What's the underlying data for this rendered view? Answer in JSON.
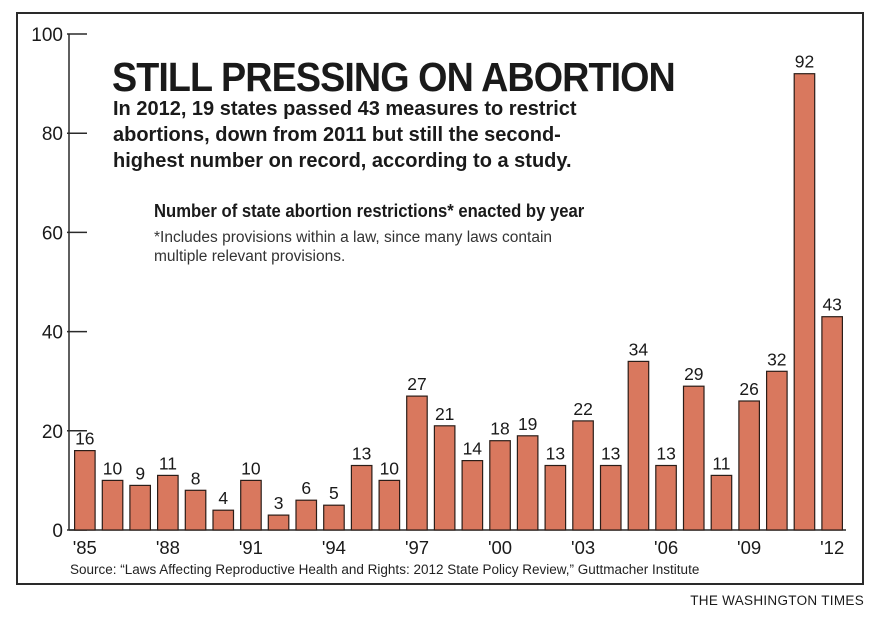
{
  "headline": "STILL PRESSING ON ABORTION",
  "dek_lines": [
    "In 2012, 19 states passed 43 measures to restrict",
    "abortions, down from 2011 but still the second-",
    "highest number on record, according to a study."
  ],
  "subhead": "Number of state abortion restrictions* enacted by year",
  "footnote_lines": [
    "*Includes provisions within a law, since many laws contain",
    "multiple relevant provisions."
  ],
  "source": "Source: “Laws Affecting Reproductive Health and Rights: 2012 State Policy Review,” Guttmacher Institute",
  "brand": "THE WASHINGTON TIMES",
  "colors": {
    "bar": "#d9785e",
    "bar_stroke": "#2b1d18",
    "axis": "#2a2a2a"
  },
  "chart_data": {
    "type": "bar",
    "categories": [
      "1985",
      "1986",
      "1987",
      "1988",
      "1989",
      "1990",
      "1991",
      "1992",
      "1993",
      "1994",
      "1995",
      "1996",
      "1997",
      "1998",
      "1999",
      "2000",
      "2001",
      "2002",
      "2003",
      "2004",
      "2005",
      "2006",
      "2007",
      "2008",
      "2009",
      "2010",
      "2011",
      "2012"
    ],
    "values": [
      16,
      10,
      9,
      11,
      8,
      4,
      10,
      3,
      6,
      5,
      13,
      10,
      27,
      21,
      14,
      18,
      19,
      13,
      22,
      13,
      34,
      13,
      29,
      11,
      26,
      32,
      92,
      43
    ],
    "x_tick_labels": [
      "'85",
      "'88",
      "'91",
      "'94",
      "'97",
      "'00",
      "'03",
      "'06",
      "'09",
      "'12"
    ],
    "x_tick_indices": [
      0,
      3,
      6,
      9,
      12,
      15,
      18,
      21,
      24,
      27
    ],
    "y_ticks": [
      0,
      20,
      40,
      60,
      80,
      100
    ],
    "ylim": [
      0,
      100
    ],
    "title": "Number of state abortion restrictions* enacted by year",
    "xlabel": "",
    "ylabel": "",
    "data_labels": true,
    "grid": false
  }
}
